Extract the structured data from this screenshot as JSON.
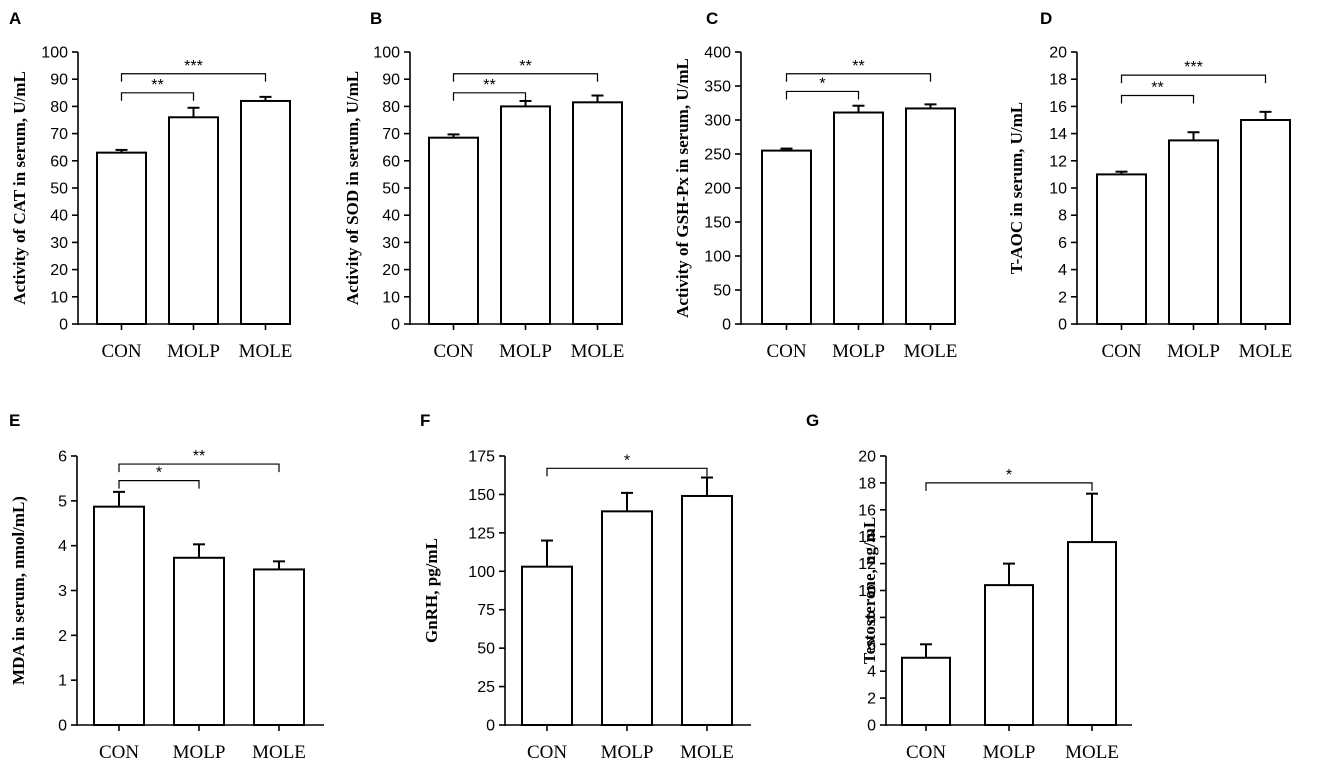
{
  "chart_data": [
    {
      "panel": "A",
      "type": "bar",
      "ylabel": "Activity of CAT in serum, U/mL",
      "categories": [
        "CON",
        "MOLP",
        "MOLE"
      ],
      "values": [
        63,
        76,
        82
      ],
      "errors": [
        1,
        3.5,
        1.5
      ],
      "ylim": [
        0,
        100
      ],
      "yticks": [
        "0",
        "10",
        "20",
        "30",
        "40",
        "50",
        "60",
        "70",
        "80",
        "90",
        "100"
      ],
      "significance": [
        {
          "from": 0,
          "to": 1,
          "label": "**",
          "y": 85
        },
        {
          "from": 0,
          "to": 2,
          "label": "***",
          "y": 92
        }
      ]
    },
    {
      "panel": "B",
      "type": "bar",
      "ylabel": "Activity of SOD in serum, U/mL",
      "categories": [
        "CON",
        "MOLP",
        "MOLE"
      ],
      "values": [
        68.5,
        80,
        81.5
      ],
      "errors": [
        1.2,
        2,
        2.5
      ],
      "ylim": [
        0,
        100
      ],
      "yticks": [
        "0",
        "10",
        "20",
        "30",
        "40",
        "50",
        "60",
        "70",
        "80",
        "90",
        "100"
      ],
      "significance": [
        {
          "from": 0,
          "to": 1,
          "label": "**",
          "y": 85
        },
        {
          "from": 0,
          "to": 2,
          "label": "**",
          "y": 92
        }
      ]
    },
    {
      "panel": "C",
      "type": "bar",
      "ylabel": "Activity of GSH-Px in serum, U/mL",
      "categories": [
        "CON",
        "MOLP",
        "MOLE"
      ],
      "values": [
        255,
        311,
        317
      ],
      "errors": [
        3,
        10,
        6
      ],
      "ylim": [
        0,
        400
      ],
      "yticks": [
        "0",
        "50",
        "100",
        "150",
        "200",
        "250",
        "300",
        "350",
        "400"
      ],
      "significance": [
        {
          "from": 0,
          "to": 1,
          "label": "*",
          "y": 342
        },
        {
          "from": 0,
          "to": 2,
          "label": "**",
          "y": 368
        }
      ]
    },
    {
      "panel": "D",
      "type": "bar",
      "ylabel": "T-AOC in serum, U/mL",
      "categories": [
        "CON",
        "MOLP",
        "MOLE"
      ],
      "values": [
        11,
        13.5,
        15
      ],
      "errors": [
        0.2,
        0.6,
        0.6
      ],
      "ylim": [
        0,
        20
      ],
      "yticks": [
        "0",
        "2",
        "4",
        "6",
        "8",
        "10",
        "12",
        "14",
        "16",
        "18",
        "20"
      ],
      "significance": [
        {
          "from": 0,
          "to": 1,
          "label": "**",
          "y": 16.8
        },
        {
          "from": 0,
          "to": 2,
          "label": "***",
          "y": 18.3
        }
      ]
    },
    {
      "panel": "E",
      "type": "bar",
      "ylabel": "MDA in serum, nmol/mL)",
      "categories": [
        "CON",
        "MOLP",
        "MOLE"
      ],
      "values": [
        4.87,
        3.73,
        3.47
      ],
      "errors": [
        0.33,
        0.3,
        0.18
      ],
      "ylim": [
        0,
        6
      ],
      "yticks": [
        "0",
        "1",
        "2",
        "3",
        "4",
        "5",
        "6"
      ],
      "significance": [
        {
          "from": 0,
          "to": 1,
          "label": "*",
          "y": 5.45
        },
        {
          "from": 0,
          "to": 2,
          "label": "**",
          "y": 5.82
        }
      ]
    },
    {
      "panel": "F",
      "type": "bar",
      "ylabel": "GnRH, pg/mL",
      "categories": [
        "CON",
        "MOLP",
        "MOLE"
      ],
      "values": [
        103,
        139,
        149
      ],
      "errors": [
        17,
        12,
        12
      ],
      "ylim": [
        0,
        175
      ],
      "yticks": [
        "0",
        "25",
        "50",
        "75",
        "100",
        "125",
        "150",
        "175"
      ],
      "significance": [
        {
          "from": 0,
          "to": 2,
          "label": "*",
          "y": 167
        }
      ]
    },
    {
      "panel": "G",
      "type": "bar",
      "ylabel": "Testosterone, ng/mL",
      "categories": [
        "CON",
        "MOLP",
        "MOLE"
      ],
      "values": [
        5,
        10.4,
        13.6
      ],
      "errors": [
        1,
        1.6,
        3.6
      ],
      "ylim": [
        0,
        20
      ],
      "yticks": [
        "0",
        "2",
        "4",
        "6",
        "8",
        "10",
        "12",
        "14",
        "16",
        "18",
        "20"
      ],
      "significance": [
        {
          "from": 0,
          "to": 2,
          "label": "*",
          "y": 18
        }
      ]
    }
  ]
}
